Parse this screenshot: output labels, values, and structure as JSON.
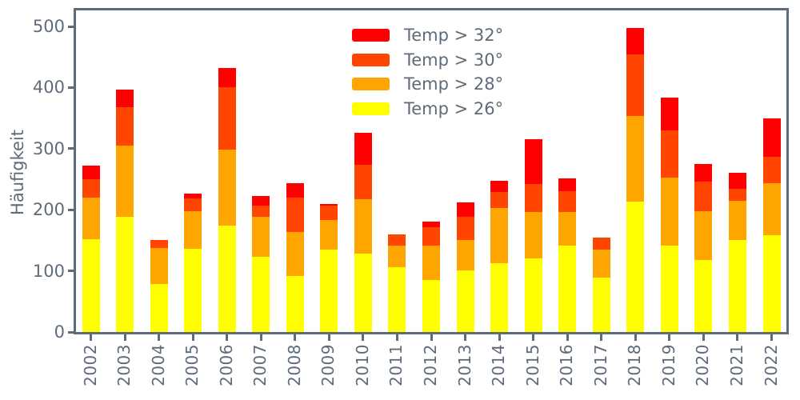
{
  "figure": {
    "background": "#ffffff",
    "axis_color": "#5f6b7a"
  },
  "chart_data": {
    "type": "bar",
    "stacked": true,
    "title": "",
    "xlabel": "",
    "ylabel": "Häufigkeit",
    "grid": false,
    "ylim": [
      0,
      526
    ],
    "yticks": [
      "0",
      "100",
      "200",
      "300",
      "400",
      "500"
    ],
    "ytick_values": [
      0,
      100,
      200,
      300,
      400,
      500
    ],
    "categories": [
      "2002",
      "2003",
      "2004",
      "2005",
      "2006",
      "2007",
      "2008",
      "2009",
      "2010",
      "2011",
      "2012",
      "2013",
      "2014",
      "2015",
      "2016",
      "2017",
      "2018",
      "2019",
      "2020",
      "2021",
      "2022"
    ],
    "series": [
      {
        "name": "Temp > 26°",
        "color": "#ffff00",
        "values": [
          152,
          189,
          78,
          136,
          174,
          123,
          92,
          135,
          128,
          106,
          85,
          101,
          112,
          120,
          142,
          89,
          213,
          142,
          118,
          151,
          158
        ]
      },
      {
        "name": "Temp > 28°",
        "color": "#ffa500",
        "values": [
          68,
          116,
          60,
          62,
          125,
          65,
          72,
          48,
          89,
          35,
          56,
          50,
          91,
          76,
          54,
          46,
          140,
          111,
          80,
          64,
          86
        ]
      },
      {
        "name": "Temp > 30°",
        "color": "#ff4500",
        "values": [
          30,
          63,
          13,
          20,
          101,
          19,
          56,
          24,
          57,
          19,
          31,
          37,
          26,
          46,
          34,
          19,
          101,
          77,
          48,
          19,
          43
        ]
      },
      {
        "name": "Temp > 32°",
        "color": "#ff0000",
        "values": [
          22,
          29,
          0,
          9,
          32,
          16,
          23,
          3,
          52,
          0,
          9,
          24,
          18,
          73,
          21,
          0,
          44,
          54,
          29,
          27,
          62
        ]
      }
    ],
    "totals": [
      272,
      397,
      151,
      227,
      432,
      223,
      243,
      210,
      326,
      160,
      181,
      212,
      247,
      315,
      251,
      154,
      498,
      384,
      275,
      261,
      349
    ],
    "legend": {
      "position": "upper center",
      "frame": false,
      "entries": [
        {
          "label": "Temp > 32°",
          "color": "#ff0000"
        },
        {
          "label": "Temp > 30°",
          "color": "#ff4500"
        },
        {
          "label": "Temp > 28°",
          "color": "#ffa500"
        },
        {
          "label": "Temp > 26°",
          "color": "#ffff00"
        }
      ]
    }
  }
}
